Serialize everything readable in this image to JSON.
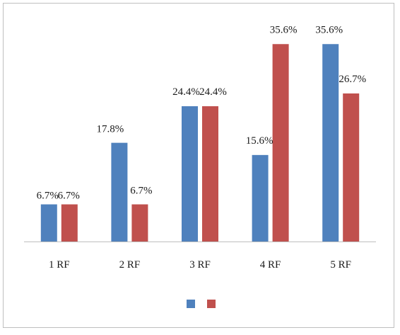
{
  "chart_data": {
    "type": "bar",
    "title": "",
    "xlabel": "",
    "ylabel": "",
    "categories": [
      "1 RF",
      "2 RF",
      "3 RF",
      "4 RF",
      "5 RF"
    ],
    "series": [
      {
        "color": "#4f81bd",
        "values": [
          6.7,
          17.8,
          24.4,
          15.6,
          35.6
        ],
        "labels": [
          "6.7%",
          "17.8%",
          "24.4%",
          "15.6%",
          "35.6%"
        ]
      },
      {
        "color": "#c0504d",
        "values": [
          6.7,
          6.7,
          24.4,
          35.6,
          26.7
        ],
        "labels": [
          "6.7%",
          "6.7%",
          "24.4%",
          "35.6%",
          "26.7%"
        ]
      }
    ],
    "ylim": [
      0,
      40
    ],
    "grid": false,
    "legend": "bottom"
  }
}
